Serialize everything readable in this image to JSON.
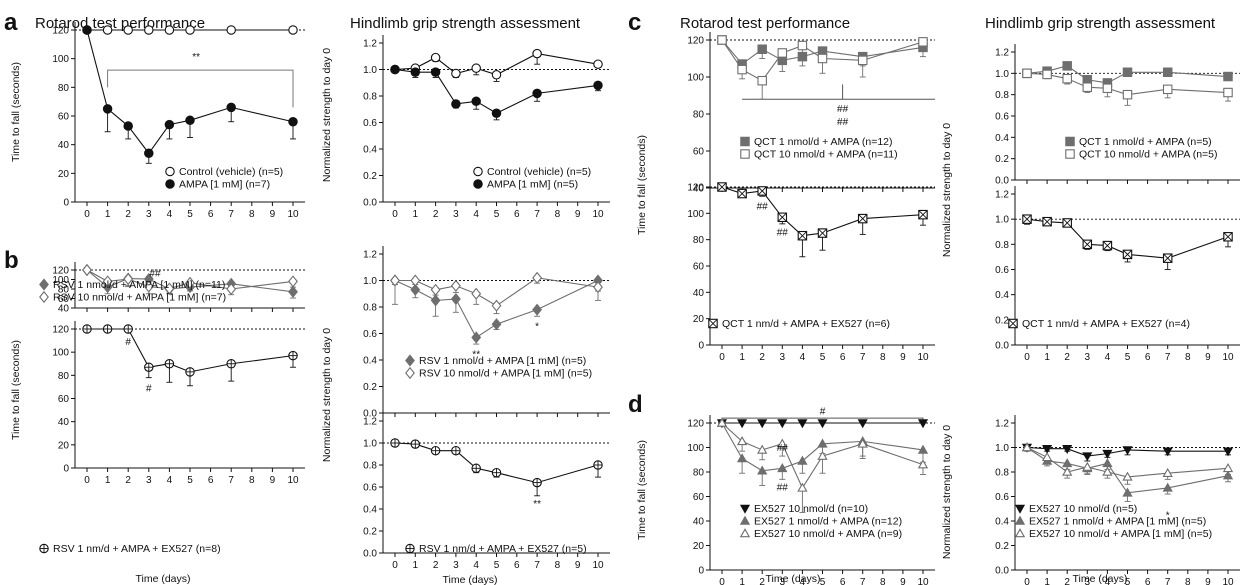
{
  "colors": {
    "black": "#111111",
    "gray": "#6e6e6e",
    "axis": "#111111"
  },
  "headers": [
    {
      "text": "Rotarod test performance"
    },
    {
      "text": "Hindlimb grip strength assessment"
    },
    {
      "text": "Rotarod test performance"
    },
    {
      "text": "Hindlimb grip strength assessment"
    }
  ],
  "panel_labels": [
    "a",
    "b",
    "c",
    "d"
  ],
  "ylabels": [
    {
      "text": "Time to fall (seconds)"
    },
    {
      "text": "Normalized strength to day 0"
    },
    {
      "text": "Time to fall (seconds)"
    },
    {
      "text": "Normalized strength to day 0"
    },
    {
      "text": "Time to fall (seconds)"
    },
    {
      "text": "Normalized strength to day 0"
    },
    {
      "text": "Time to fall (seconds)"
    },
    {
      "text": "Normalized strength to day 0"
    }
  ],
  "xlabels": [
    {
      "text": "Time (days)"
    },
    {
      "text": "Time (days)"
    },
    {
      "text": "Time (days)"
    },
    {
      "text": "Time (days)"
    }
  ],
  "chart_data": [
    {
      "id": "a_rot",
      "type": "line",
      "xlabel": "",
      "ylabel": "Time to fall (seconds)",
      "ylim": [
        0,
        120
      ],
      "ref": 120,
      "series": [
        {
          "name": "Control (vehicle) (n=5)",
          "marker": "circle-open",
          "color": "#111111",
          "x": [
            0,
            1,
            2,
            3,
            4,
            5,
            7,
            10
          ],
          "values": [
            120,
            120,
            120,
            120,
            120,
            120,
            120,
            120
          ],
          "err": [
            0,
            0,
            0,
            0,
            0,
            0,
            0,
            0
          ]
        },
        {
          "name": "AMPA [1 mM] (n=7)",
          "marker": "circle",
          "color": "#111111",
          "x": [
            0,
            1,
            2,
            3,
            4,
            5,
            7,
            10
          ],
          "values": [
            120,
            65,
            53,
            34,
            54,
            57,
            66,
            56
          ],
          "err": [
            0,
            16,
            9,
            7,
            10,
            12,
            10,
            12
          ]
        }
      ],
      "annotations": [
        {
          "text": "**",
          "x": 5.3,
          "y": 99
        }
      ]
    },
    {
      "id": "a_grip",
      "type": "line",
      "xlabel": "",
      "ylabel": "Normalized strength to day 0",
      "ylim": [
        0,
        1.2
      ],
      "ref": 1.0,
      "series": [
        {
          "name": "Control (vehicle) (n=5)",
          "marker": "circle-open",
          "color": "#111111",
          "x": [
            0,
            1,
            2,
            3,
            4,
            5,
            7,
            10
          ],
          "values": [
            1.0,
            1.01,
            1.09,
            0.97,
            1.01,
            0.96,
            1.12,
            1.04
          ],
          "err": [
            0.02,
            0.03,
            0.03,
            0.03,
            0.05,
            0.05,
            0.08,
            0.02
          ]
        },
        {
          "name": "AMPA [1 mM] (n=5)",
          "marker": "circle",
          "color": "#111111",
          "x": [
            0,
            1,
            2,
            3,
            4,
            5,
            7,
            10
          ],
          "values": [
            1.0,
            0.98,
            0.98,
            0.74,
            0.76,
            0.67,
            0.82,
            0.88
          ],
          "err": [
            0.02,
            0.04,
            0.04,
            0.03,
            0.06,
            0.05,
            0.06,
            0.04
          ]
        }
      ],
      "annotations": []
    },
    {
      "id": "b_rot1",
      "type": "line",
      "xlabel": "",
      "ylabel": "",
      "ylim": [
        40,
        120
      ],
      "ref": 120,
      "series": [
        {
          "name": "RSV 1 nmol/d + AMPA [1 mM] (n=11)",
          "marker": "diamond",
          "color": "#6e6e6e",
          "x": [
            0,
            1,
            2,
            3,
            4,
            5,
            7,
            10
          ],
          "values": [
            120,
            84,
            102,
            101,
            80,
            84,
            91,
            74
          ],
          "err": [
            0,
            14,
            15,
            12,
            10,
            8,
            10,
            13
          ]
        },
        {
          "name": "RSV 10 nmol/d + AMPA [1 mM] (n=7)",
          "marker": "diamond-open",
          "color": "#6e6e6e",
          "x": [
            0,
            1,
            2,
            3,
            4,
            5,
            7,
            10
          ],
          "values": [
            120,
            96,
            101,
            85,
            81,
            93,
            80,
            96
          ],
          "err": [
            0,
            14,
            16,
            15,
            10,
            8,
            12,
            12
          ]
        }
      ],
      "annotations": [
        {
          "text": "##",
          "x": 3.3,
          "y": 106
        }
      ]
    },
    {
      "id": "b_rot2",
      "type": "line",
      "xlabel": "Time (days)",
      "ylabel": "",
      "ylim": [
        0,
        120
      ],
      "ref": 120,
      "series": [
        {
          "name": "RSV 1 nm/d + AMPA + EX527 (n=8)",
          "marker": "circle-cross",
          "color": "#111111",
          "x": [
            0,
            1,
            2,
            3,
            4,
            5,
            7,
            10
          ],
          "values": [
            120,
            120,
            120,
            87,
            90,
            83,
            90,
            97
          ],
          "err": [
            0,
            0,
            0,
            9,
            16,
            12,
            15,
            10
          ]
        }
      ],
      "annotations": [
        {
          "text": "#",
          "x": 2.0,
          "y": 106
        },
        {
          "text": "#",
          "x": 3.0,
          "y": 66
        }
      ]
    },
    {
      "id": "b_grip1",
      "type": "line",
      "xlabel": "",
      "ylabel": "",
      "ylim": [
        0,
        1.2
      ],
      "ref": 1.0,
      "series": [
        {
          "name": "RSV 1 nmol/d + AMPA [1 mM] (n=5)",
          "marker": "diamond",
          "color": "#6e6e6e",
          "x": [
            0,
            1,
            2,
            3,
            4,
            5,
            7,
            10
          ],
          "values": [
            1.0,
            0.93,
            0.85,
            0.86,
            0.57,
            0.67,
            0.78,
            1.0
          ],
          "err": [
            0.18,
            0.06,
            0.12,
            0.1,
            0.05,
            0.04,
            0.05,
            0.08
          ]
        },
        {
          "name": "RSV 10 nmol/d + AMPA [1 mM] (n=5)",
          "marker": "diamond-open",
          "color": "#6e6e6e",
          "x": [
            0,
            1,
            2,
            3,
            4,
            5,
            7,
            10
          ],
          "values": [
            1.0,
            1.0,
            0.93,
            0.96,
            0.9,
            0.81,
            1.02,
            0.95
          ],
          "err": [
            0.03,
            0.03,
            0.04,
            0.05,
            0.08,
            0.06,
            0.04,
            0.1
          ]
        }
      ],
      "annotations": [
        {
          "text": "**",
          "x": 4.0,
          "y": 0.42
        },
        {
          "text": "*",
          "x": 7.0,
          "y": 0.63
        }
      ]
    },
    {
      "id": "b_grip2",
      "type": "line",
      "xlabel": "Time (days)",
      "ylabel": "",
      "ylim": [
        0,
        1.2
      ],
      "ref": 1.0,
      "series": [
        {
          "name": "RSV 1 nm/d + AMPA + EX527 (n=5)",
          "marker": "circle-cross",
          "color": "#111111",
          "x": [
            0,
            1,
            2,
            3,
            4,
            5,
            7,
            10
          ],
          "values": [
            1.0,
            0.99,
            0.93,
            0.93,
            0.77,
            0.73,
            0.64,
            0.8
          ],
          "err": [
            0.03,
            0.03,
            0.03,
            0.03,
            0.04,
            0.04,
            0.12,
            0.11
          ]
        }
      ],
      "annotations": [
        {
          "text": "**",
          "x": 7.0,
          "y": 0.42
        }
      ]
    },
    {
      "id": "c_rot1",
      "type": "line",
      "xlabel": "",
      "ylabel": "",
      "ylim": [
        40,
        120
      ],
      "ref": 120,
      "series": [
        {
          "name": "QCT 1 nmol/d + AMPA (n=12)",
          "marker": "square",
          "color": "#6e6e6e",
          "x": [
            0,
            1,
            2,
            3,
            4,
            5,
            7,
            10
          ],
          "values": [
            120,
            107,
            115,
            109,
            111,
            114,
            111,
            116
          ],
          "err": [
            0,
            5,
            5,
            6,
            5,
            6,
            5,
            5
          ]
        },
        {
          "name": "QCT 10 nmol/d + AMPA (n=11)",
          "marker": "square-open",
          "color": "#6e6e6e",
          "x": [
            0,
            1,
            2,
            3,
            4,
            5,
            7,
            10
          ],
          "values": [
            120,
            104,
            98,
            113,
            117,
            110,
            109,
            119
          ],
          "err": [
            0,
            5,
            10,
            6,
            5,
            8,
            9,
            4
          ]
        }
      ],
      "annotations": [
        {
          "text": "##",
          "x": 6.0,
          "y": 81
        },
        {
          "text": "##",
          "x": 6.0,
          "y": 74
        }
      ]
    },
    {
      "id": "c_rot2",
      "type": "line",
      "xlabel": "",
      "ylabel": "",
      "ylim": [
        0,
        120
      ],
      "ref": 120,
      "series": [
        {
          "name": "QCT 1 nm/d + AMPA + EX527 (n=6)",
          "marker": "square-cross",
          "color": "#111111",
          "x": [
            0,
            1,
            2,
            3,
            4,
            5,
            7,
            10
          ],
          "values": [
            120,
            115,
            117,
            97,
            83,
            85,
            96,
            99
          ],
          "err": [
            0,
            3,
            4,
            5,
            16,
            13,
            12,
            8
          ]
        }
      ],
      "annotations": [
        {
          "text": "##",
          "x": 2.0,
          "y": 103
        },
        {
          "text": "##",
          "x": 3.0,
          "y": 83
        }
      ]
    },
    {
      "id": "c_grip1",
      "type": "line",
      "xlabel": "",
      "ylabel": "",
      "ylim": [
        0,
        1.2
      ],
      "ref": 1.0,
      "series": [
        {
          "name": "QCT 1 nmol/d + AMPA (n=5)",
          "marker": "square",
          "color": "#6e6e6e",
          "x": [
            0,
            1,
            2,
            3,
            4,
            5,
            7,
            10
          ],
          "values": [
            1.0,
            1.02,
            1.07,
            0.94,
            0.91,
            1.01,
            1.01,
            0.97
          ],
          "err": [
            0.02,
            0.03,
            0.03,
            0.03,
            0.03,
            0.03,
            0.02,
            0.02
          ]
        },
        {
          "name": "QCT 10 nmol/d + AMPA (n=5)",
          "marker": "square-open",
          "color": "#6e6e6e",
          "x": [
            0,
            1,
            2,
            3,
            4,
            5,
            7,
            10
          ],
          "values": [
            1.0,
            0.99,
            0.95,
            0.87,
            0.86,
            0.8,
            0.85,
            0.82
          ],
          "err": [
            0.02,
            0.04,
            0.05,
            0.05,
            0.08,
            0.1,
            0.08,
            0.08
          ]
        }
      ],
      "annotations": []
    },
    {
      "id": "c_grip2",
      "type": "line",
      "xlabel": "",
      "ylabel": "",
      "ylim": [
        0,
        1.2
      ],
      "ref": 1.0,
      "series": [
        {
          "name": "QCT 1 nm/d + AMPA + EX527 (n=4)",
          "marker": "square-cross",
          "color": "#111111",
          "x": [
            0,
            1,
            2,
            3,
            4,
            5,
            7,
            10
          ],
          "values": [
            1.0,
            0.98,
            0.97,
            0.8,
            0.79,
            0.72,
            0.69,
            0.86
          ],
          "err": [
            0.04,
            0.02,
            0.02,
            0.04,
            0.04,
            0.06,
            0.09,
            0.08
          ]
        }
      ],
      "annotations": []
    },
    {
      "id": "d_rot",
      "type": "line",
      "xlabel": "Time (days)",
      "ylabel": "",
      "ylim": [
        0,
        120
      ],
      "ref": 120,
      "series": [
        {
          "name": "EX527 10 nmol/d (n=10)",
          "marker": "triangle-down",
          "color": "#111111",
          "x": [
            0,
            1,
            2,
            3,
            4,
            5,
            7,
            10
          ],
          "values": [
            120,
            120,
            120,
            120,
            120,
            120,
            120,
            120
          ],
          "err": [
            0,
            0,
            0,
            0,
            0,
            0,
            0,
            0
          ]
        },
        {
          "name": "EX527 1 nmol/d + AMPA (n=12)",
          "marker": "triangle",
          "color": "#6e6e6e",
          "x": [
            0,
            1,
            2,
            3,
            4,
            5,
            7,
            10
          ],
          "values": [
            120,
            91,
            81,
            83,
            89,
            103,
            105,
            98
          ],
          "err": [
            0,
            12,
            12,
            9,
            10,
            8,
            12,
            10
          ]
        },
        {
          "name": "EX527 10 nmol/d + AMPA (n=9)",
          "marker": "triangle-open",
          "color": "#6e6e6e",
          "x": [
            0,
            1,
            2,
            3,
            4,
            5,
            7,
            10
          ],
          "values": [
            120,
            105,
            98,
            103,
            67,
            93,
            103,
            86
          ],
          "err": [
            0,
            8,
            8,
            10,
            20,
            14,
            12,
            8
          ]
        }
      ],
      "annotations": [
        {
          "text": "#",
          "x": 5.0,
          "y": 127
        },
        {
          "text": "##",
          "x": 3.0,
          "y": 97
        },
        {
          "text": "##",
          "x": 3.0,
          "y": 65
        }
      ]
    },
    {
      "id": "d_grip",
      "type": "line",
      "xlabel": "Time (days)",
      "ylabel": "",
      "ylim": [
        0,
        1.2
      ],
      "ref": 1.0,
      "series": [
        {
          "name": "EX527 10 nmol/d (n=5)",
          "marker": "triangle-down",
          "color": "#111111",
          "x": [
            0,
            1,
            2,
            3,
            4,
            5,
            7,
            10
          ],
          "values": [
            1.0,
            0.99,
            0.99,
            0.93,
            0.95,
            0.98,
            0.97,
            0.97
          ],
          "err": [
            0.02,
            0.02,
            0.02,
            0.04,
            0.03,
            0.04,
            0.03,
            0.03
          ]
        },
        {
          "name": "EX527 1 nmol/d + AMPA [1 mM] (n=5)",
          "marker": "triangle",
          "color": "#6e6e6e",
          "x": [
            0,
            1,
            2,
            3,
            4,
            5,
            7,
            10
          ],
          "values": [
            1.0,
            0.89,
            0.87,
            0.83,
            0.87,
            0.63,
            0.67,
            0.77
          ],
          "err": [
            0.03,
            0.04,
            0.05,
            0.05,
            0.05,
            0.07,
            0.05,
            0.05
          ]
        },
        {
          "name": "EX527 10 nmol/d + AMPA [1 mM] (n=5)",
          "marker": "triangle-open",
          "color": "#6e6e6e",
          "x": [
            0,
            1,
            2,
            3,
            4,
            5,
            7,
            10
          ],
          "values": [
            1.0,
            0.92,
            0.8,
            0.84,
            0.8,
            0.76,
            0.79,
            0.83
          ],
          "err": [
            0.03,
            0.04,
            0.05,
            0.05,
            0.05,
            0.06,
            0.05,
            0.05
          ]
        }
      ],
      "annotations": [
        {
          "text": "*",
          "x": 7.0,
          "y": 0.42
        }
      ]
    }
  ]
}
